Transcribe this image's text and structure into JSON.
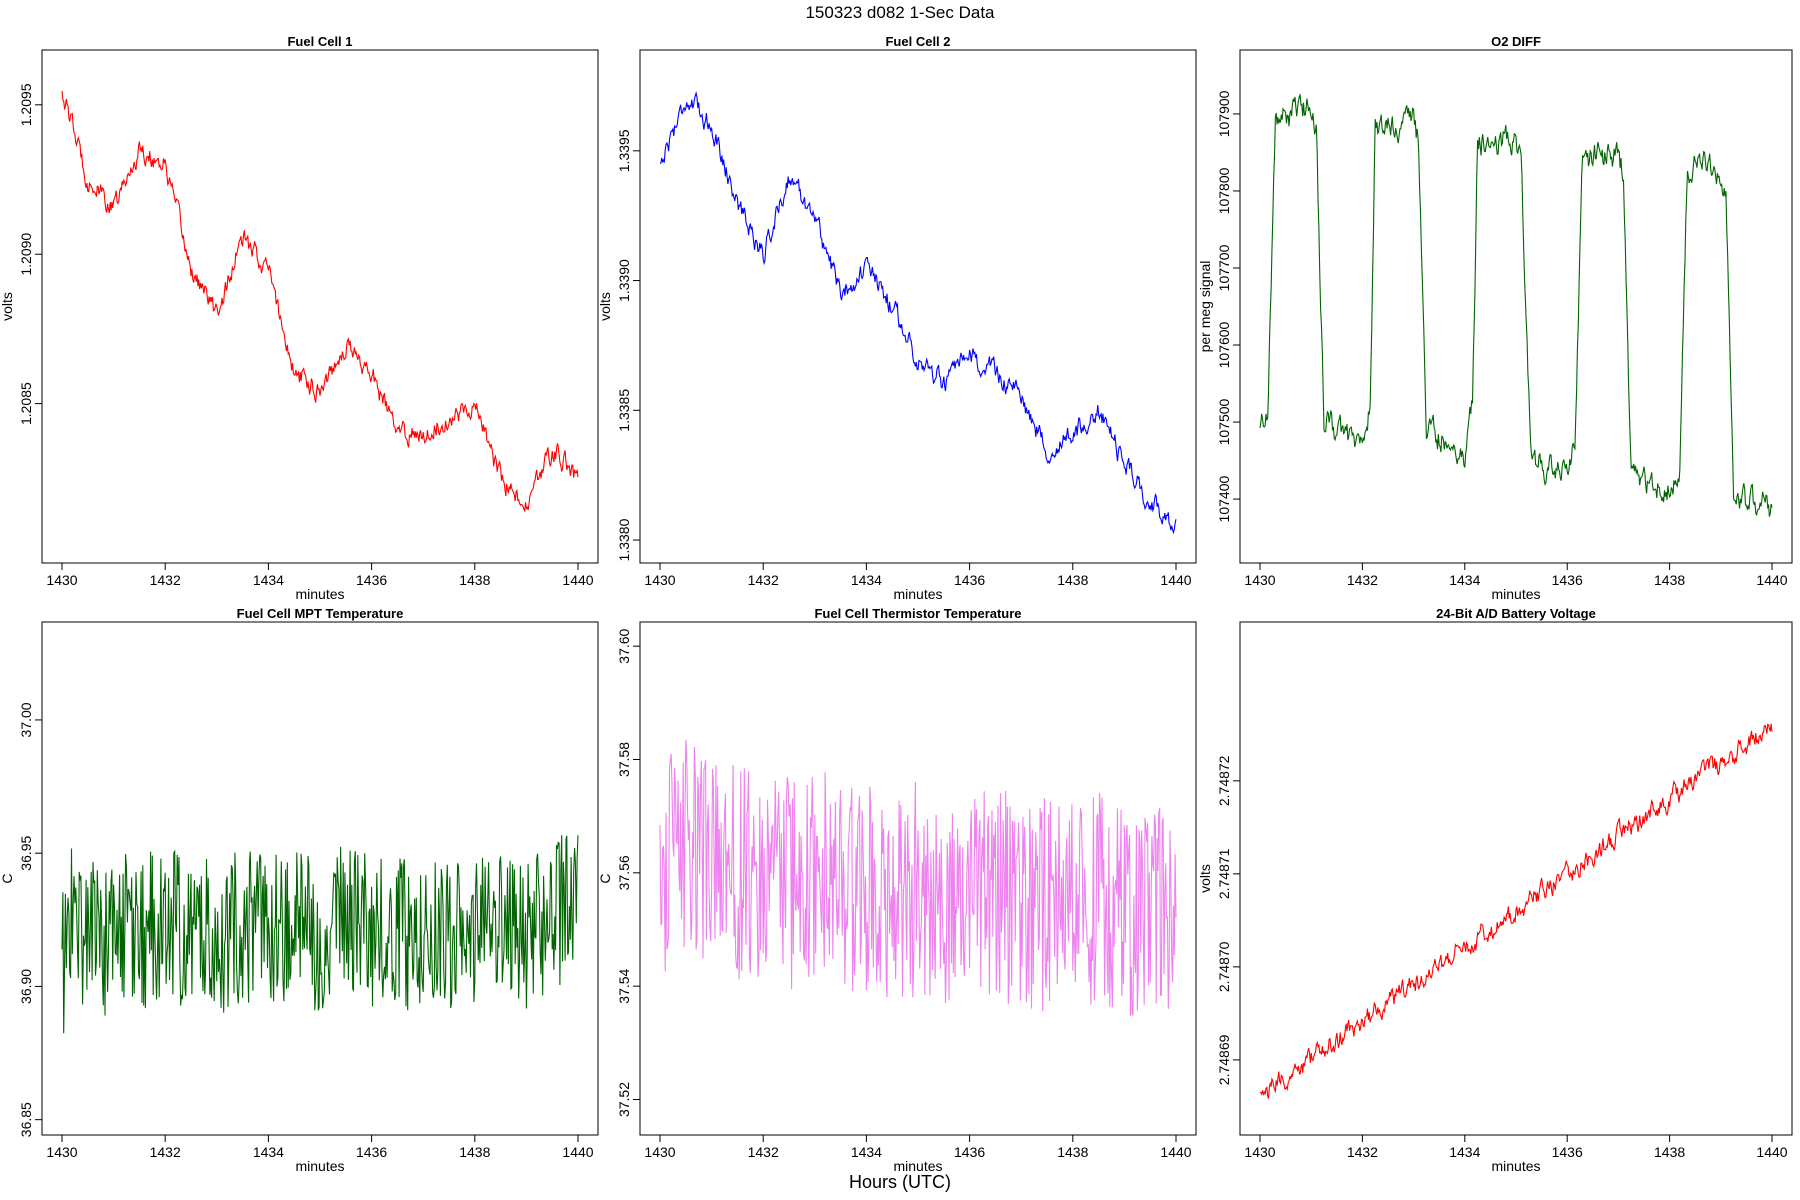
{
  "main_title": "150323   d082   1-Sec Data",
  "bottom_label": "Hours (UTC)",
  "chart_data": [
    {
      "type": "line",
      "title": "Fuel Cell 1",
      "xlabel": "minutes",
      "ylabel": "volts",
      "color": "#ff0000",
      "xlim": [
        1430,
        1440
      ],
      "ylim": [
        1.208,
        1.20965
      ],
      "xticks": [
        1430,
        1432,
        1434,
        1436,
        1438,
        1440
      ],
      "yticks": [
        1.2085,
        1.209,
        1.2095
      ],
      "ytick_labels": [
        "1.2085",
        "1.2090",
        "1.2095"
      ],
      "x": [
        1430.0,
        1430.5,
        1431.0,
        1431.5,
        1432.0,
        1432.5,
        1433.0,
        1433.5,
        1434.0,
        1434.5,
        1435.0,
        1435.5,
        1436.0,
        1436.5,
        1437.0,
        1437.5,
        1438.0,
        1438.5,
        1439.0,
        1439.5,
        1440.0
      ],
      "values": [
        1.20955,
        1.20925,
        1.20915,
        1.20935,
        1.2093,
        1.20895,
        1.2088,
        1.20905,
        1.20895,
        1.2086,
        1.20855,
        1.2087,
        1.2086,
        1.2084,
        1.2084,
        1.20845,
        1.2085,
        1.20825,
        1.20815,
        1.20835,
        1.20825
      ]
    },
    {
      "type": "line",
      "title": "Fuel Cell 2",
      "xlabel": "minutes",
      "ylabel": "volts",
      "color": "#0000ff",
      "xlim": [
        1430,
        1440
      ],
      "ylim": [
        1.33795,
        1.33985
      ],
      "xticks": [
        1430,
        1432,
        1434,
        1436,
        1438,
        1440
      ],
      "yticks": [
        1.338,
        1.3385,
        1.339,
        1.3395
      ],
      "ytick_labels": [
        "1.3380",
        "1.3385",
        "1.3390",
        "1.3395"
      ],
      "x": [
        1430.0,
        1430.5,
        1431.0,
        1431.5,
        1432.0,
        1432.5,
        1433.0,
        1433.5,
        1434.0,
        1434.5,
        1435.0,
        1435.5,
        1436.0,
        1436.5,
        1437.0,
        1437.5,
        1438.0,
        1438.5,
        1439.0,
        1439.5,
        1440.0
      ],
      "values": [
        1.33945,
        1.3397,
        1.3396,
        1.3393,
        1.3391,
        1.3394,
        1.33925,
        1.33895,
        1.33905,
        1.3389,
        1.3387,
        1.3386,
        1.3387,
        1.33865,
        1.33855,
        1.33835,
        1.3384,
        1.3385,
        1.3383,
        1.33815,
        1.33805
      ]
    },
    {
      "type": "line",
      "title": "O2 DIFF",
      "xlabel": "minutes",
      "ylabel": "per meg signal",
      "color": "#006400",
      "xlim": [
        1430,
        1440
      ],
      "ylim": [
        107330,
        107970
      ],
      "xticks": [
        1430,
        1432,
        1434,
        1436,
        1438,
        1440
      ],
      "yticks": [
        107400,
        107500,
        107600,
        107700,
        107800,
        107900
      ],
      "ytick_labels": [
        "107400",
        "107500",
        "107600",
        "107700",
        "107800",
        "107900"
      ],
      "x": [
        1430.0,
        1430.15,
        1430.3,
        1431.0,
        1431.1,
        1431.25,
        1432.0,
        1432.15,
        1432.25,
        1433.0,
        1433.1,
        1433.25,
        1434.0,
        1434.15,
        1434.25,
        1435.0,
        1435.1,
        1435.3,
        1436.0,
        1436.15,
        1436.3,
        1437.0,
        1437.1,
        1437.25,
        1438.0,
        1438.2,
        1438.35,
        1439.0,
        1439.1,
        1439.25,
        1440.0
      ],
      "values": [
        107490,
        107520,
        107890,
        107910,
        107880,
        107500,
        107470,
        107520,
        107880,
        107890,
        107860,
        107490,
        107460,
        107520,
        107860,
        107870,
        107840,
        107450,
        107430,
        107480,
        107840,
        107850,
        107820,
        107430,
        107410,
        107450,
        107830,
        107830,
        107800,
        107400,
        107390
      ]
    },
    {
      "type": "line",
      "title": "Fuel Cell MPT Temperature",
      "xlabel": "minutes",
      "ylabel": "C",
      "color": "#006400",
      "xlim": [
        1430,
        1440
      ],
      "ylim": [
        36.848,
        37.033
      ],
      "xticks": [
        1430,
        1432,
        1434,
        1436,
        1438,
        1440
      ],
      "yticks": [
        36.85,
        36.9,
        36.95,
        37.0
      ],
      "ytick_labels": [
        "36.85",
        "36.90",
        "36.95",
        "37.00"
      ],
      "x": [
        1430.0,
        1430.2,
        1430.4,
        1430.6,
        1430.8,
        1431.0,
        1431.5,
        1432.0,
        1432.5,
        1433.0,
        1433.5,
        1434.0,
        1434.5,
        1435.0,
        1435.5,
        1436.0,
        1436.5,
        1437.0,
        1437.5,
        1438.0,
        1438.5,
        1439.0,
        1439.5,
        1440.0
      ],
      "values": [
        36.905,
        36.93,
        36.92,
        36.925,
        36.915,
        36.922,
        36.918,
        36.925,
        36.92,
        36.918,
        36.924,
        36.92,
        36.922,
        36.919,
        36.925,
        36.921,
        36.918,
        36.924,
        36.92,
        36.917,
        36.923,
        36.921,
        36.926,
        36.93
      ]
    },
    {
      "type": "line",
      "title": "Fuel Cell Thermistor Temperature",
      "xlabel": "minutes",
      "ylabel": "C",
      "color": "#ee82ee",
      "xlim": [
        1430,
        1440
      ],
      "ylim": [
        37.5155,
        37.6025
      ],
      "xticks": [
        1430,
        1432,
        1434,
        1436,
        1438,
        1440
      ],
      "yticks": [
        37.52,
        37.54,
        37.56,
        37.58,
        37.6
      ],
      "ytick_labels": [
        "37.52",
        "37.54",
        "37.56",
        "37.58",
        "37.60"
      ],
      "x": [
        1430.0,
        1430.5,
        1431.0,
        1431.5,
        1432.0,
        1432.5,
        1433.0,
        1433.5,
        1434.0,
        1434.5,
        1435.0,
        1435.5,
        1436.0,
        1436.5,
        1437.0,
        1437.5,
        1438.0,
        1438.5,
        1439.0,
        1439.5,
        1440.0
      ],
      "values": [
        37.56,
        37.565,
        37.562,
        37.56,
        37.559,
        37.558,
        37.56,
        37.557,
        37.558,
        37.556,
        37.557,
        37.555,
        37.556,
        37.557,
        37.555,
        37.554,
        37.555,
        37.556,
        37.553,
        37.554,
        37.552
      ]
    },
    {
      "type": "line",
      "title": "24-Bit A/D Battery Voltage",
      "xlabel": "minutes",
      "ylabel": "volts",
      "color": "#ff0000",
      "xlim": [
        1430,
        1440
      ],
      "ylim": [
        2.748683,
        2.748736
      ],
      "xticks": [
        1430,
        1432,
        1434,
        1436,
        1438,
        1440
      ],
      "yticks": [
        2.74869,
        2.7487,
        2.74871,
        2.74872
      ],
      "ytick_labels": [
        "2.74869",
        "2.74870",
        "2.74871",
        "2.74872"
      ],
      "x": [
        1430.0,
        1430.5,
        1431.0,
        1431.5,
        1432.0,
        1432.5,
        1433.0,
        1433.5,
        1434.0,
        1434.5,
        1435.0,
        1435.5,
        1436.0,
        1436.5,
        1437.0,
        1437.5,
        1438.0,
        1438.5,
        1439.0,
        1439.5,
        1440.0
      ],
      "values": [
        2.748686,
        2.748688,
        2.74869,
        2.748692,
        2.748694,
        2.748696,
        2.748698,
        2.7487,
        2.748702,
        2.748704,
        2.748706,
        2.748708,
        2.74871,
        2.748712,
        2.748714,
        2.748716,
        2.748718,
        2.74872,
        2.748722,
        2.748724,
        2.748726
      ]
    }
  ]
}
